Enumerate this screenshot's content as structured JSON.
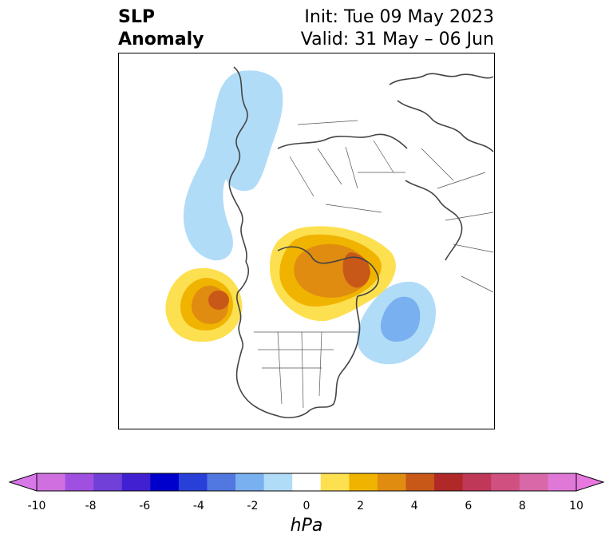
{
  "title": {
    "left_line1": "SLP",
    "left_line2": "Anomaly",
    "right_line1": "Init: Tue 09 May 2023",
    "right_line2": "Valid: 31 May – 06 Jun"
  },
  "colorbar": {
    "units": "hPa",
    "tick_labels": [
      "-10",
      "-8",
      "-6",
      "-4",
      "-2",
      "0",
      "2",
      "4",
      "6",
      "8",
      "10"
    ],
    "colors": [
      "#d070e0",
      "#a050e0",
      "#7040d8",
      "#4020d0",
      "#0000cc",
      "#2840d8",
      "#5078e0",
      "#78b0f0",
      "#b0dcf8",
      "#ffffff",
      "#fde050",
      "#f0b400",
      "#e08c10",
      "#c85818",
      "#b02828",
      "#c03858",
      "#d05080",
      "#d868a8",
      "#e078d8"
    ],
    "left_extend_color": "#d878e8",
    "right_extend_color": "#e878e0"
  }
}
